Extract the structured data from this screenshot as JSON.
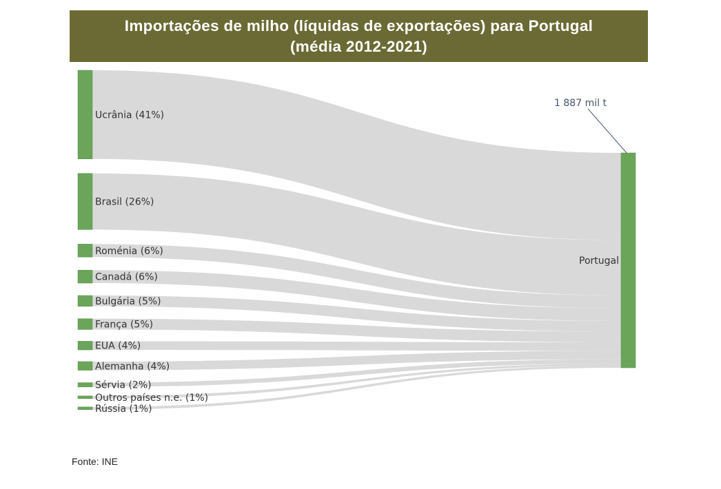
{
  "chart_data": {
    "type": "sankey",
    "title_line1": "Importações de milho (líquidas de exportações) para Portugal",
    "title_line2": "(média 2012-2021)",
    "target": "Portugal",
    "total_label": "1 887 mil t",
    "unit": "mil t",
    "sources": [
      {
        "label": "Ucrânia (41%)",
        "share": 41
      },
      {
        "label": "Brasil (26%)",
        "share": 26
      },
      {
        "label": "Roménia (6%)",
        "share": 6
      },
      {
        "label": "Canadá (6%)",
        "share": 6
      },
      {
        "label": "Bulgária (5%)",
        "share": 5
      },
      {
        "label": "França (5%)",
        "share": 5
      },
      {
        "label": "EUA (4%)",
        "share": 4
      },
      {
        "label": "Alemanha (4%)",
        "share": 4
      },
      {
        "label": "Sérvia (2%)",
        "share": 2
      },
      {
        "label": "Outros países n.e. (1%)",
        "share": 1
      },
      {
        "label": "Rússia (1%)",
        "share": 1
      }
    ],
    "colors": {
      "node": "#6aa55a",
      "link": "#d9d9d9",
      "title_bg": "#6b6a34",
      "leader": "#44546a"
    }
  },
  "footer": {
    "source": "Fonte: INE"
  }
}
